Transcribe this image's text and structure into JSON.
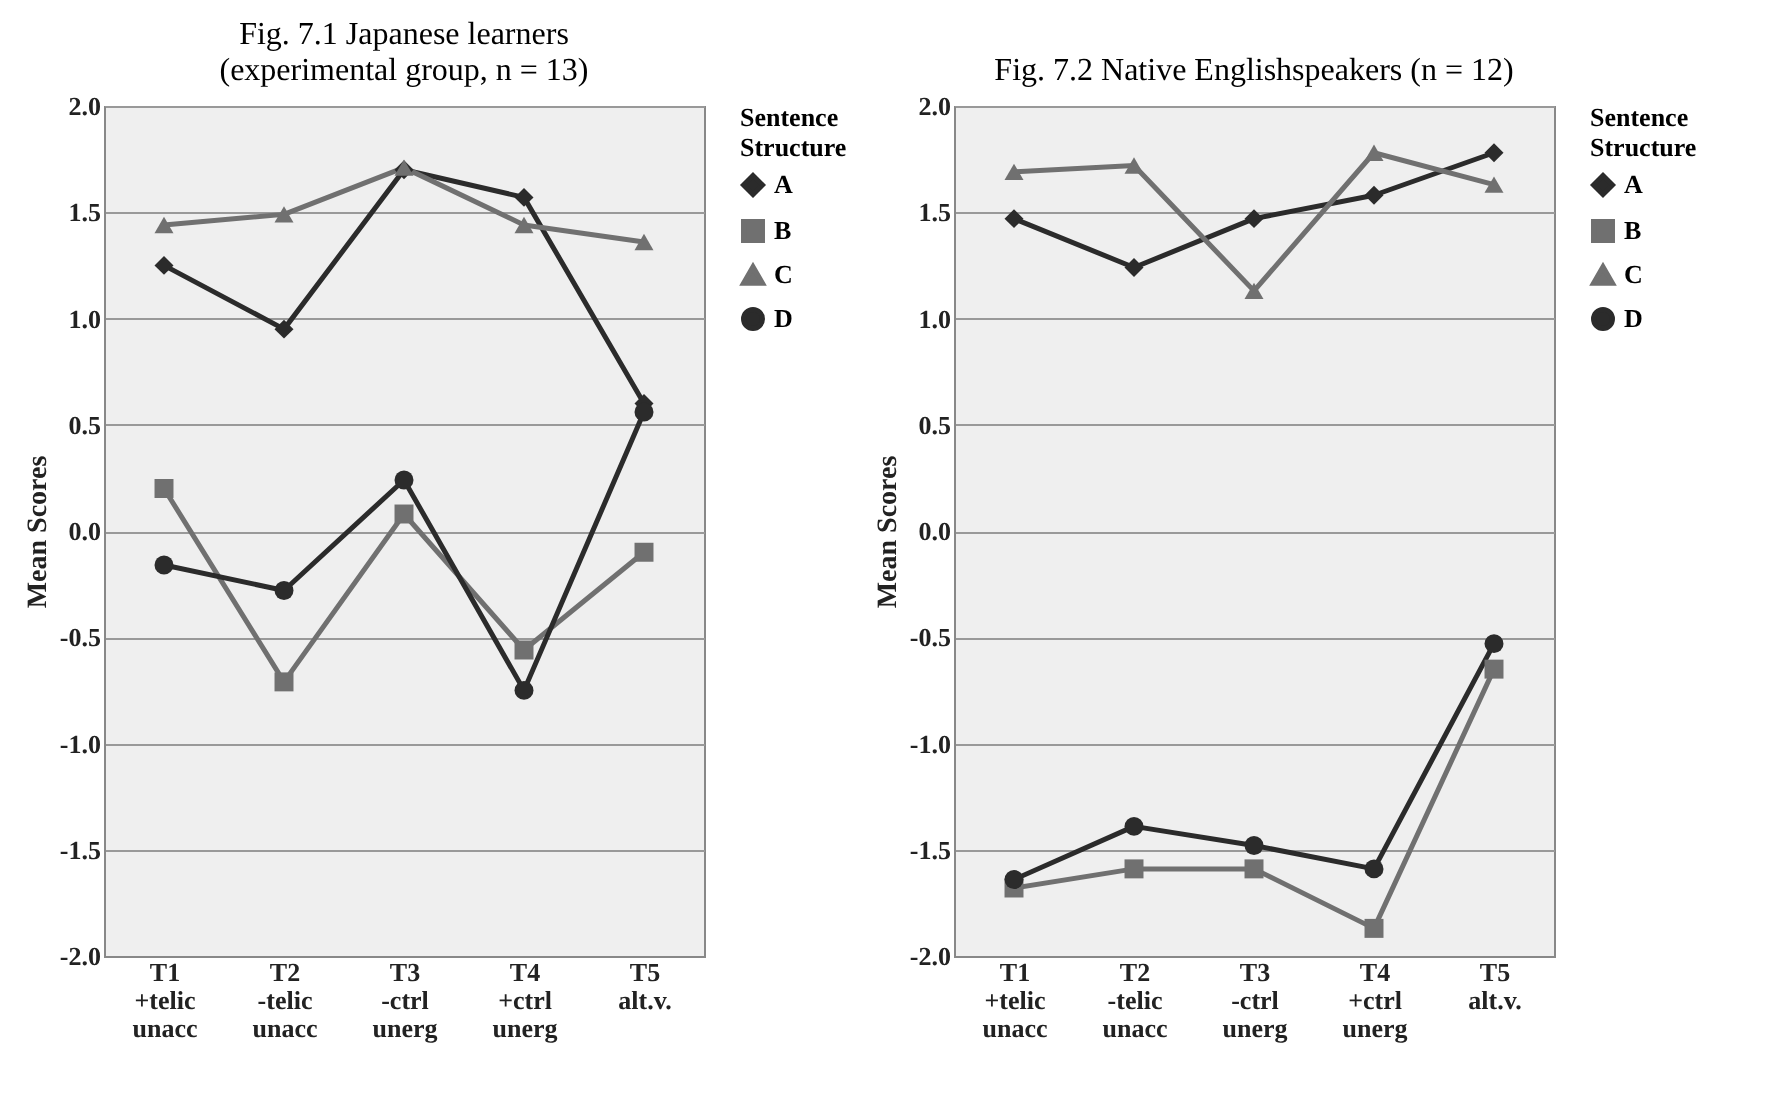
{
  "chart_data": [
    {
      "type": "line",
      "title": "Fig. 7.1 Japanese learners\n(experimental group, n = 13)",
      "ylabel": "Mean Scores",
      "legend_title": "Sentence Structure",
      "legend": "right",
      "grid": "y",
      "categories": [
        "T1\n+telic\nunacc",
        "T2\n-telic\nunacc",
        "T3\n-ctrl\nunerg",
        "T4\n+ctrl\nunerg",
        "T5\nalt.v."
      ],
      "ylim": [
        -2,
        2
      ],
      "yticks": [
        {
          "value": -2,
          "label": "-2.0"
        },
        {
          "value": -1.5,
          "label": "-1.5"
        },
        {
          "value": -1,
          "label": "-1.0"
        },
        {
          "value": -0.5,
          "label": "-0.5"
        },
        {
          "value": 0,
          "label": "0.0"
        },
        {
          "value": 0.5,
          "label": "0.5"
        },
        {
          "value": 1,
          "label": "1.0"
        },
        {
          "value": 1.5,
          "label": "1.5"
        },
        {
          "value": 2,
          "label": "2.0"
        }
      ],
      "series": [
        {
          "name": "A",
          "color": "#2b2b2b",
          "marker": "diamond",
          "values": [
            1.25,
            0.95,
            1.7,
            1.57,
            0.6
          ]
        },
        {
          "name": "B",
          "color": "#707070",
          "marker": "square",
          "values": [
            0.2,
            -0.71,
            0.08,
            -0.56,
            -0.1
          ]
        },
        {
          "name": "C",
          "color": "#707070",
          "marker": "triangle",
          "values": [
            1.44,
            1.49,
            1.71,
            1.44,
            1.36
          ]
        },
        {
          "name": "D",
          "color": "#2b2b2b",
          "marker": "circle",
          "values": [
            -0.16,
            -0.28,
            0.24,
            -0.75,
            0.56
          ]
        }
      ]
    },
    {
      "type": "line",
      "title": "Fig. 7.2 Native Englishspeakers (n = 12)",
      "ylabel": "Mean Scores",
      "legend_title": "Sentence Structure",
      "legend": "right",
      "grid": "y",
      "categories": [
        "T1\n+telic\nunacc",
        "T2\n-telic\nunacc",
        "T3\n-ctrl\nunerg",
        "T4\n+ctrl\nunerg",
        "T5\nalt.v."
      ],
      "ylim": [
        -2,
        2
      ],
      "yticks": [
        {
          "value": -2,
          "label": "-2.0"
        },
        {
          "value": -1.5,
          "label": "-1.5"
        },
        {
          "value": -1,
          "label": "-1.0"
        },
        {
          "value": -0.5,
          "label": "-0.5"
        },
        {
          "value": 0,
          "label": "0.0"
        },
        {
          "value": 0.5,
          "label": "0.5"
        },
        {
          "value": 1,
          "label": "1.0"
        },
        {
          "value": 1.5,
          "label": "1.5"
        },
        {
          "value": 2,
          "label": "2.0"
        }
      ],
      "series": [
        {
          "name": "A",
          "color": "#2b2b2b",
          "marker": "diamond",
          "values": [
            1.47,
            1.24,
            1.47,
            1.58,
            1.78
          ]
        },
        {
          "name": "B",
          "color": "#707070",
          "marker": "square",
          "values": [
            -1.68,
            -1.59,
            -1.59,
            -1.87,
            -0.65
          ]
        },
        {
          "name": "C",
          "color": "#707070",
          "marker": "triangle",
          "values": [
            1.69,
            1.72,
            1.13,
            1.78,
            1.63
          ]
        },
        {
          "name": "D",
          "color": "#2b2b2b",
          "marker": "circle",
          "values": [
            -1.64,
            -1.39,
            -1.48,
            -1.59,
            -0.53
          ]
        }
      ]
    }
  ]
}
